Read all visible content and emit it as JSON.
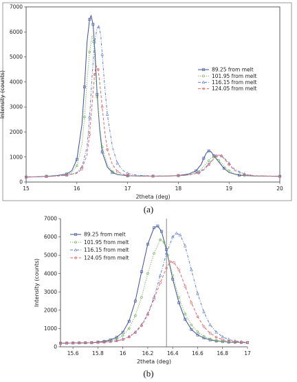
{
  "figure": {
    "panel_a_label": "(a)",
    "panel_b_label": "(b)"
  },
  "colors": {
    "series_89": "#3a4f9a",
    "series_101": "#6ab04c",
    "series_116": "#5f7fd6",
    "series_124": "#e06a6a"
  },
  "chart_data": [
    {
      "type": "line",
      "panel": "a",
      "xlabel": "2theta (deg)",
      "ylabel": "Intensity (counts)",
      "xlim": [
        15,
        20
      ],
      "ylim": [
        0,
        7000
      ],
      "xticks": [
        15,
        16,
        17,
        18,
        19,
        20
      ],
      "yticks": [
        0,
        1000,
        2000,
        3000,
        4000,
        5000,
        6000,
        7000
      ],
      "grid": false,
      "legend_position": "center-right",
      "series": [
        {
          "name": "89.25 from melt",
          "style": "solid",
          "x": [
            15.0,
            15.2,
            15.4,
            15.6,
            15.8,
            15.9,
            16.0,
            16.1,
            16.15,
            16.2,
            16.25,
            16.28,
            16.32,
            16.36,
            16.4,
            16.45,
            16.5,
            16.6,
            16.7,
            16.8,
            17.0,
            17.2,
            17.5,
            17.8,
            18.0,
            18.2,
            18.35,
            18.45,
            18.5,
            18.55,
            18.6,
            18.65,
            18.7,
            18.8,
            18.9,
            19.0,
            19.2,
            19.5,
            20.0
          ],
          "y": [
            200,
            210,
            230,
            260,
            320,
            450,
            900,
            2300,
            3800,
            5600,
            6500,
            6650,
            6300,
            5100,
            3500,
            2100,
            1200,
            600,
            380,
            300,
            250,
            240,
            235,
            240,
            260,
            320,
            450,
            700,
            950,
            1150,
            1250,
            1200,
            1050,
            800,
            550,
            380,
            270,
            240,
            230
          ]
        },
        {
          "name": "101.95 from melt",
          "style": "dotted",
          "x": [
            15.0,
            15.2,
            15.4,
            15.6,
            15.8,
            15.9,
            16.0,
            16.1,
            16.15,
            16.2,
            16.25,
            16.3,
            16.33,
            16.36,
            16.4,
            16.45,
            16.5,
            16.6,
            16.7,
            16.8,
            17.0,
            17.2,
            17.5,
            17.8,
            18.0,
            18.2,
            18.4,
            18.5,
            18.6,
            18.65,
            18.7,
            18.75,
            18.8,
            18.9,
            19.0,
            19.1,
            19.3,
            19.5,
            20.0
          ],
          "y": [
            200,
            210,
            230,
            250,
            300,
            380,
            650,
            1500,
            2600,
            4000,
            5200,
            5850,
            5600,
            4700,
            3400,
            2200,
            1400,
            700,
            420,
            310,
            250,
            240,
            235,
            240,
            250,
            290,
            420,
            620,
            850,
            980,
            1000,
            960,
            860,
            650,
            450,
            330,
            260,
            240,
            230
          ]
        },
        {
          "name": "116.15 from melt",
          "style": "dashdot",
          "x": [
            15.0,
            15.2,
            15.4,
            15.6,
            15.8,
            16.0,
            16.1,
            16.2,
            16.25,
            16.3,
            16.35,
            16.4,
            16.43,
            16.47,
            16.5,
            16.55,
            16.6,
            16.7,
            16.8,
            16.9,
            17.0,
            17.2,
            17.5,
            17.8,
            18.0,
            18.2,
            18.4,
            18.5,
            18.6,
            18.7,
            18.75,
            18.8,
            18.85,
            18.9,
            19.0,
            19.1,
            19.3,
            19.5,
            20.0
          ],
          "y": [
            200,
            210,
            220,
            240,
            270,
            380,
            600,
            1400,
            2600,
            4200,
            5600,
            6150,
            6200,
            5900,
            5100,
            3800,
            2700,
            1400,
            750,
            480,
            340,
            270,
            240,
            240,
            250,
            280,
            380,
            520,
            720,
            950,
            1050,
            1080,
            1050,
            970,
            750,
            520,
            320,
            250,
            230
          ]
        },
        {
          "name": "124.05 from melt",
          "style": "dashed",
          "x": [
            15.0,
            15.2,
            15.4,
            15.6,
            15.8,
            16.0,
            16.1,
            16.2,
            16.25,
            16.3,
            16.35,
            16.38,
            16.42,
            16.46,
            16.5,
            16.55,
            16.6,
            16.7,
            16.8,
            16.9,
            17.0,
            17.2,
            17.5,
            17.8,
            18.0,
            18.2,
            18.4,
            18.5,
            18.6,
            18.7,
            18.75,
            18.8,
            18.85,
            18.9,
            19.0,
            19.1,
            19.3,
            19.5,
            20.0
          ],
          "y": [
            200,
            210,
            220,
            240,
            270,
            350,
            520,
            1100,
            1900,
            3100,
            4300,
            4650,
            4500,
            3800,
            3000,
            2000,
            1300,
            700,
            420,
            320,
            270,
            240,
            235,
            240,
            250,
            280,
            360,
            480,
            700,
            930,
            1040,
            1080,
            1040,
            940,
            700,
            470,
            300,
            250,
            230
          ]
        }
      ]
    },
    {
      "type": "line",
      "panel": "b",
      "xlabel": "2theta (deg)",
      "ylabel": "Intensity (counts)",
      "xlim": [
        15.5,
        17.0
      ],
      "ylim": [
        0,
        7000
      ],
      "xticks": [
        15.6,
        15.8,
        16.0,
        16.2,
        16.4,
        16.6,
        16.8,
        17.0
      ],
      "xtick_labels": [
        "15.6",
        "15.8",
        "16",
        "16.2",
        "16.4",
        "16.6",
        "16.8",
        "17"
      ],
      "yticks": [
        0,
        1000,
        2000,
        3000,
        4000,
        5000,
        6000,
        7000
      ],
      "grid": false,
      "legend_position": "top-left",
      "reference_line_x": 16.35,
      "series": [
        {
          "name": "89.25 from melt",
          "style": "solid",
          "x": [
            15.5,
            15.55,
            15.6,
            15.65,
            15.7,
            15.75,
            15.8,
            15.85,
            15.9,
            15.95,
            16.0,
            16.05,
            16.1,
            16.15,
            16.2,
            16.25,
            16.28,
            16.31,
            16.35,
            16.4,
            16.45,
            16.5,
            16.55,
            16.6,
            16.65,
            16.7,
            16.75,
            16.8,
            16.85,
            16.9,
            16.95,
            17.0
          ],
          "y": [
            200,
            205,
            210,
            215,
            220,
            230,
            260,
            300,
            380,
            520,
            800,
            1400,
            2500,
            4100,
            5600,
            6500,
            6600,
            6300,
            5300,
            3700,
            2400,
            1500,
            950,
            650,
            480,
            380,
            320,
            290,
            260,
            250,
            240,
            230
          ]
        },
        {
          "name": "101.95 from melt",
          "style": "dotted",
          "x": [
            15.5,
            15.55,
            15.6,
            15.65,
            15.7,
            15.75,
            15.8,
            15.85,
            15.9,
            15.95,
            16.0,
            16.05,
            16.1,
            16.15,
            16.2,
            16.25,
            16.3,
            16.33,
            16.36,
            16.4,
            16.45,
            16.5,
            16.55,
            16.6,
            16.65,
            16.7,
            16.75,
            16.8,
            16.85,
            16.9,
            16.95,
            17.0
          ],
          "y": [
            200,
            205,
            210,
            215,
            220,
            230,
            250,
            280,
            330,
            430,
            620,
            1000,
            1700,
            2700,
            4000,
            5100,
            5850,
            5700,
            5000,
            3900,
            2700,
            1800,
            1200,
            820,
            580,
            430,
            340,
            300,
            270,
            250,
            240,
            230
          ]
        },
        {
          "name": "116.15 from melt",
          "style": "dashdot",
          "x": [
            15.5,
            15.55,
            15.6,
            15.65,
            15.7,
            15.75,
            15.8,
            15.85,
            15.9,
            15.95,
            16.0,
            16.05,
            16.1,
            16.15,
            16.2,
            16.25,
            16.3,
            16.35,
            16.4,
            16.43,
            16.46,
            16.5,
            16.55,
            16.6,
            16.65,
            16.7,
            16.75,
            16.8,
            16.85,
            16.9,
            16.95,
            17.0
          ],
          "y": [
            200,
            205,
            210,
            215,
            220,
            225,
            240,
            260,
            290,
            340,
            420,
            560,
            800,
            1200,
            1800,
            2700,
            3900,
            5100,
            6000,
            6200,
            6100,
            5500,
            4200,
            2900,
            1900,
            1200,
            800,
            550,
            400,
            320,
            270,
            240
          ]
        },
        {
          "name": "124.05 from melt",
          "style": "dashed",
          "x": [
            15.5,
            15.55,
            15.6,
            15.65,
            15.7,
            15.75,
            15.8,
            15.85,
            15.9,
            15.95,
            16.0,
            16.05,
            16.1,
            16.15,
            16.2,
            16.25,
            16.3,
            16.35,
            16.38,
            16.41,
            16.45,
            16.5,
            16.55,
            16.6,
            16.65,
            16.7,
            16.75,
            16.8,
            16.85,
            16.9,
            16.95,
            17.0
          ],
          "y": [
            200,
            205,
            210,
            215,
            220,
            225,
            240,
            255,
            280,
            320,
            400,
            540,
            780,
            1150,
            1750,
            2600,
            3500,
            4300,
            4650,
            4600,
            4200,
            3300,
            2400,
            1650,
            1100,
            750,
            520,
            390,
            310,
            270,
            250,
            230
          ]
        }
      ]
    }
  ]
}
